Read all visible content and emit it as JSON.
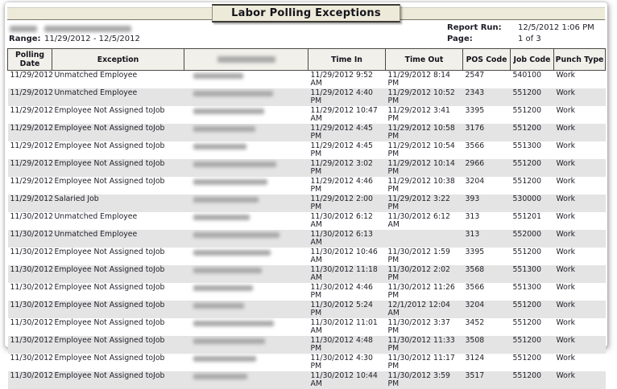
{
  "header": {
    "title": "Labor Polling Exceptions",
    "report_run_label": "Report Run:",
    "report_run_value": "12/5/2012 1:06 PM",
    "page_label": "Page:",
    "page_value": "1 of 3",
    "range_label": "Range:",
    "range_value": "11/29/2012 - 12/5/2012",
    "top_left_redacted": true
  },
  "table": {
    "employee_column_redacted": true,
    "columns": [
      "Polling Date",
      "Exception",
      "",
      "Time In",
      "Time Out",
      "POS Code",
      "Job Code",
      "Punch Type"
    ],
    "rows": [
      {
        "polling_date": "11/29/2012",
        "exception": "Unmatched Employee",
        "time_in": "11/29/2012 9:52 AM",
        "time_out": "11/29/2012 8:14 PM",
        "pos_code": "2547",
        "job_code": "540100",
        "punch_type": "Work"
      },
      {
        "polling_date": "11/29/2012",
        "exception": "Unmatched Employee",
        "time_in": "11/29/2012 4:40 PM",
        "time_out": "11/29/2012 10:52\nPM",
        "pos_code": "2343",
        "job_code": "551200",
        "punch_type": "Work"
      },
      {
        "polling_date": "11/29/2012",
        "exception": "Employee Not Assigned toJob",
        "time_in": "11/29/2012 10:47\nAM",
        "time_out": "11/29/2012 3:41 PM",
        "pos_code": "3395",
        "job_code": "551200",
        "punch_type": "Work"
      },
      {
        "polling_date": "11/29/2012",
        "exception": "Employee Not Assigned toJob",
        "time_in": "11/29/2012 4:45 PM",
        "time_out": "11/29/2012 10:58\nPM",
        "pos_code": "3176",
        "job_code": "551200",
        "punch_type": "Work"
      },
      {
        "polling_date": "11/29/2012",
        "exception": "Employee Not Assigned toJob",
        "time_in": "11/29/2012 4:45 PM",
        "time_out": "11/29/2012 10:54\nPM",
        "pos_code": "3566",
        "job_code": "551300",
        "punch_type": "Work"
      },
      {
        "polling_date": "11/29/2012",
        "exception": "Employee Not Assigned toJob",
        "time_in": "11/29/2012 3:02 PM",
        "time_out": "11/29/2012 10:14\nPM",
        "pos_code": "2966",
        "job_code": "551200",
        "punch_type": "Work"
      },
      {
        "polling_date": "11/29/2012",
        "exception": "Employee Not Assigned toJob",
        "time_in": "11/29/2012 4:46 PM",
        "time_out": "11/29/2012 10:38\nPM",
        "pos_code": "3204",
        "job_code": "551200",
        "punch_type": "Work"
      },
      {
        "polling_date": "11/29/2012",
        "exception": "Salaried Job",
        "time_in": "11/29/2012 2:00 PM",
        "time_out": "11/29/2012 3:22 PM",
        "pos_code": "393",
        "job_code": "530000",
        "punch_type": "Work"
      },
      {
        "polling_date": "11/30/2012",
        "exception": "Unmatched Employee",
        "time_in": "11/30/2012 6:12 AM",
        "time_out": "11/30/2012 6:12 AM",
        "pos_code": "313",
        "job_code": "551201",
        "punch_type": "Work"
      },
      {
        "polling_date": "11/30/2012",
        "exception": "Unmatched Employee",
        "time_in": "11/30/2012 6:13 AM",
        "time_out": "",
        "pos_code": "313",
        "job_code": "552000",
        "punch_type": "Work"
      },
      {
        "polling_date": "11/30/2012",
        "exception": "Employee Not Assigned toJob",
        "time_in": "11/30/2012 10:46\nAM",
        "time_out": "11/30/2012 1:59 PM",
        "pos_code": "3395",
        "job_code": "551200",
        "punch_type": "Work"
      },
      {
        "polling_date": "11/30/2012",
        "exception": "Employee Not Assigned toJob",
        "time_in": "11/30/2012 11:18\nAM",
        "time_out": "11/30/2012 2:02 PM",
        "pos_code": "3568",
        "job_code": "551300",
        "punch_type": "Work"
      },
      {
        "polling_date": "11/30/2012",
        "exception": "Employee Not Assigned toJob",
        "time_in": "11/30/2012 4:46 PM",
        "time_out": "11/30/2012 11:26\nPM",
        "pos_code": "3566",
        "job_code": "551300",
        "punch_type": "Work"
      },
      {
        "polling_date": "11/30/2012",
        "exception": "Employee Not Assigned toJob",
        "time_in": "11/30/2012 5:24 PM",
        "time_out": "12/1/2012 12:04 AM",
        "pos_code": "3204",
        "job_code": "551200",
        "punch_type": "Work"
      },
      {
        "polling_date": "11/30/2012",
        "exception": "Employee Not Assigned toJob",
        "time_in": "11/30/2012 11:01\nAM",
        "time_out": "11/30/2012 3:37 PM",
        "pos_code": "3452",
        "job_code": "551200",
        "punch_type": "Work"
      },
      {
        "polling_date": "11/30/2012",
        "exception": "Employee Not Assigned toJob",
        "time_in": "11/30/2012 4:48 PM",
        "time_out": "11/30/2012 11:33\nPM",
        "pos_code": "3508",
        "job_code": "551200",
        "punch_type": "Work"
      },
      {
        "polling_date": "11/30/2012",
        "exception": "Employee Not Assigned toJob",
        "time_in": "11/30/2012 4:30 PM",
        "time_out": "11/30/2012 11:17\nPM",
        "pos_code": "3124",
        "job_code": "551200",
        "punch_type": "Work"
      },
      {
        "polling_date": "11/30/2012",
        "exception": "Employee Not Assigned toJob",
        "time_in": "11/30/2012 10:44\nAM",
        "time_out": "11/30/2012 3:59 PM",
        "pos_code": "3517",
        "job_code": "551200",
        "punch_type": "Work"
      }
    ]
  },
  "colors": {
    "title_bar_bg": "#eeead9",
    "table_header_bg": "#f1f0ea",
    "alt_row_bg": "#e4e4e4",
    "text": "#1e1e28"
  }
}
